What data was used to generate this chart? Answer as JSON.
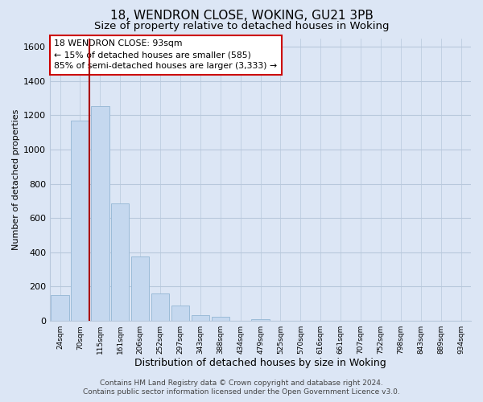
{
  "title": "18, WENDRON CLOSE, WOKING, GU21 3PB",
  "subtitle": "Size of property relative to detached houses in Woking",
  "xlabel": "Distribution of detached houses by size in Woking",
  "ylabel": "Number of detached properties",
  "bar_labels": [
    "24sqm",
    "70sqm",
    "115sqm",
    "161sqm",
    "206sqm",
    "252sqm",
    "297sqm",
    "343sqm",
    "388sqm",
    "434sqm",
    "479sqm",
    "525sqm",
    "570sqm",
    "616sqm",
    "661sqm",
    "707sqm",
    "752sqm",
    "798sqm",
    "843sqm",
    "889sqm",
    "934sqm"
  ],
  "bar_values": [
    152,
    1170,
    1255,
    685,
    375,
    160,
    90,
    35,
    22,
    0,
    10,
    0,
    0,
    0,
    0,
    0,
    0,
    0,
    0,
    0,
    0
  ],
  "bar_color": "#c5d8ef",
  "bar_edge_color": "#9bbbd8",
  "highlight_line_color": "#aa0000",
  "ylim": [
    0,
    1650
  ],
  "yticks": [
    0,
    200,
    400,
    600,
    800,
    1000,
    1200,
    1400,
    1600
  ],
  "annotation_title": "18 WENDRON CLOSE: 93sqm",
  "annotation_line1": "← 15% of detached houses are smaller (585)",
  "annotation_line2": "85% of semi-detached houses are larger (3,333) →",
  "annotation_box_color": "#ffffff",
  "annotation_box_edge_color": "#cc0000",
  "footer_line1": "Contains HM Land Registry data © Crown copyright and database right 2024.",
  "footer_line2": "Contains public sector information licensed under the Open Government Licence v3.0.",
  "bg_color": "#dce6f5",
  "plot_bg_color": "#dce6f5",
  "grid_color": "#b8c8dc",
  "title_fontsize": 11,
  "subtitle_fontsize": 9.5,
  "xlabel_fontsize": 9,
  "ylabel_fontsize": 8,
  "footer_fontsize": 6.5
}
